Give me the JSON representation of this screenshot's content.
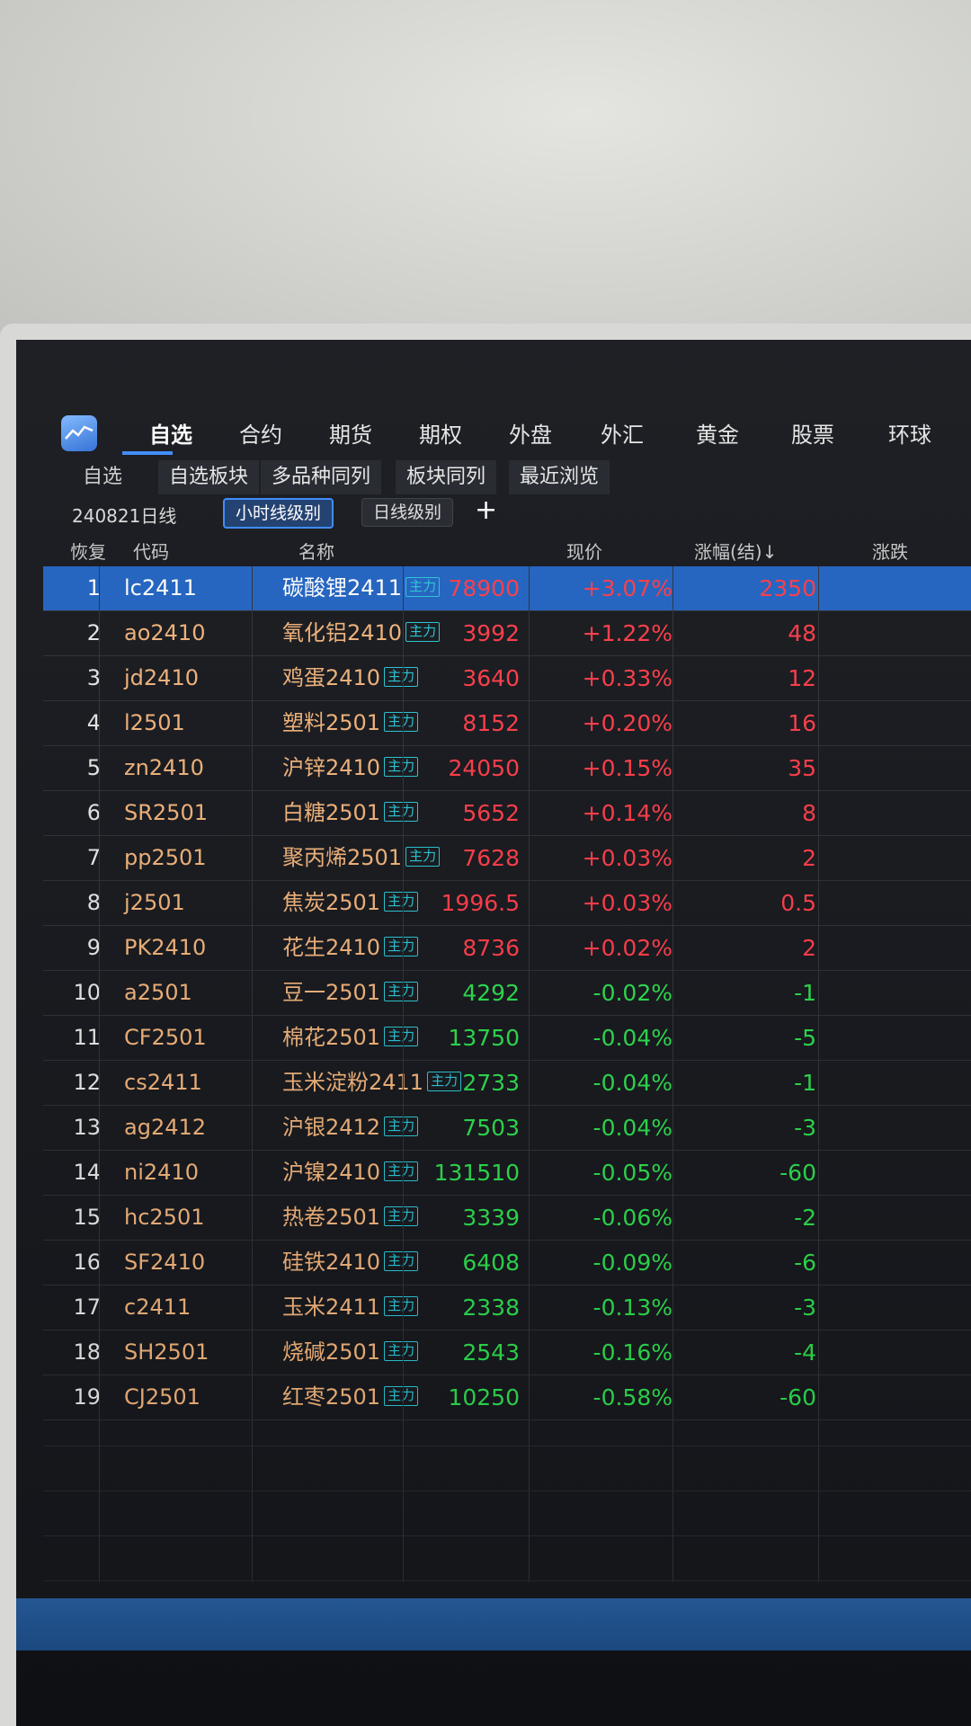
{
  "nav": {
    "tabs": [
      "自选",
      "合约",
      "期货",
      "期权",
      "外盘",
      "外汇",
      "黄金",
      "股票",
      "环球"
    ],
    "active_index": 0
  },
  "sub_tabs": [
    "自选",
    "自选板块",
    "多品种同列",
    "板块同列",
    "最近浏览"
  ],
  "toolbar": {
    "date_label": "240821日线",
    "btn_hour": "小时线级别",
    "btn_day": "日线级别",
    "add_icon": "plus-icon"
  },
  "table": {
    "headers": {
      "restore": "恢复",
      "code": "代码",
      "name": "名称",
      "price": "现价",
      "pct": "涨幅(结)↓",
      "change": "涨跌"
    },
    "tag_label": "主力",
    "rows": [
      {
        "idx": "1",
        "code": "lc2411",
        "name": "碳酸锂2411",
        "price": "78900",
        "pct": "+3.07%",
        "change": "2350",
        "dir": "up",
        "selected": true
      },
      {
        "idx": "2",
        "code": "ao2410",
        "name": "氧化铝2410",
        "price": "3992",
        "pct": "+1.22%",
        "change": "48",
        "dir": "up"
      },
      {
        "idx": "3",
        "code": "jd2410",
        "name": "鸡蛋2410",
        "price": "3640",
        "pct": "+0.33%",
        "change": "12",
        "dir": "up"
      },
      {
        "idx": "4",
        "code": "l2501",
        "name": "塑料2501",
        "price": "8152",
        "pct": "+0.20%",
        "change": "16",
        "dir": "up"
      },
      {
        "idx": "5",
        "code": "zn2410",
        "name": "沪锌2410",
        "price": "24050",
        "pct": "+0.15%",
        "change": "35",
        "dir": "up"
      },
      {
        "idx": "6",
        "code": "SR2501",
        "name": "白糖2501",
        "price": "5652",
        "pct": "+0.14%",
        "change": "8",
        "dir": "up"
      },
      {
        "idx": "7",
        "code": "pp2501",
        "name": "聚丙烯2501",
        "price": "7628",
        "pct": "+0.03%",
        "change": "2",
        "dir": "up"
      },
      {
        "idx": "8",
        "code": "j2501",
        "name": "焦炭2501",
        "price": "1996.5",
        "pct": "+0.03%",
        "change": "0.5",
        "dir": "up"
      },
      {
        "idx": "9",
        "code": "PK2410",
        "name": "花生2410",
        "price": "8736",
        "pct": "+0.02%",
        "change": "2",
        "dir": "up"
      },
      {
        "idx": "10",
        "code": "a2501",
        "name": "豆一2501",
        "price": "4292",
        "pct": "-0.02%",
        "change": "-1",
        "dir": "down"
      },
      {
        "idx": "11",
        "code": "CF2501",
        "name": "棉花2501",
        "price": "13750",
        "pct": "-0.04%",
        "change": "-5",
        "dir": "down"
      },
      {
        "idx": "12",
        "code": "cs2411",
        "name": "玉米淀粉2411",
        "price": "2733",
        "pct": "-0.04%",
        "change": "-1",
        "dir": "down"
      },
      {
        "idx": "13",
        "code": "ag2412",
        "name": "沪银2412",
        "price": "7503",
        "pct": "-0.04%",
        "change": "-3",
        "dir": "down"
      },
      {
        "idx": "14",
        "code": "ni2410",
        "name": "沪镍2410",
        "price": "131510",
        "pct": "-0.05%",
        "change": "-60",
        "dir": "down"
      },
      {
        "idx": "15",
        "code": "hc2501",
        "name": "热卷2501",
        "price": "3339",
        "pct": "-0.06%",
        "change": "-2",
        "dir": "down"
      },
      {
        "idx": "16",
        "code": "SF2410",
        "name": "硅铁2410",
        "price": "6408",
        "pct": "-0.09%",
        "change": "-6",
        "dir": "down"
      },
      {
        "idx": "17",
        "code": "c2411",
        "name": "玉米2411",
        "price": "2338",
        "pct": "-0.13%",
        "change": "-3",
        "dir": "down"
      },
      {
        "idx": "18",
        "code": "SH2501",
        "name": "烧碱2501",
        "price": "2543",
        "pct": "-0.16%",
        "change": "-4",
        "dir": "down"
      },
      {
        "idx": "19",
        "code": "CJ2501",
        "name": "红枣2501",
        "price": "10250",
        "pct": "-0.58%",
        "change": "-60",
        "dir": "down"
      }
    ]
  },
  "colors": {
    "up": "#ff3b48",
    "down": "#2bdc4c",
    "code_text": "#f2b37a",
    "selected_row": "#1f63c2",
    "tag": "#29c6d6"
  }
}
